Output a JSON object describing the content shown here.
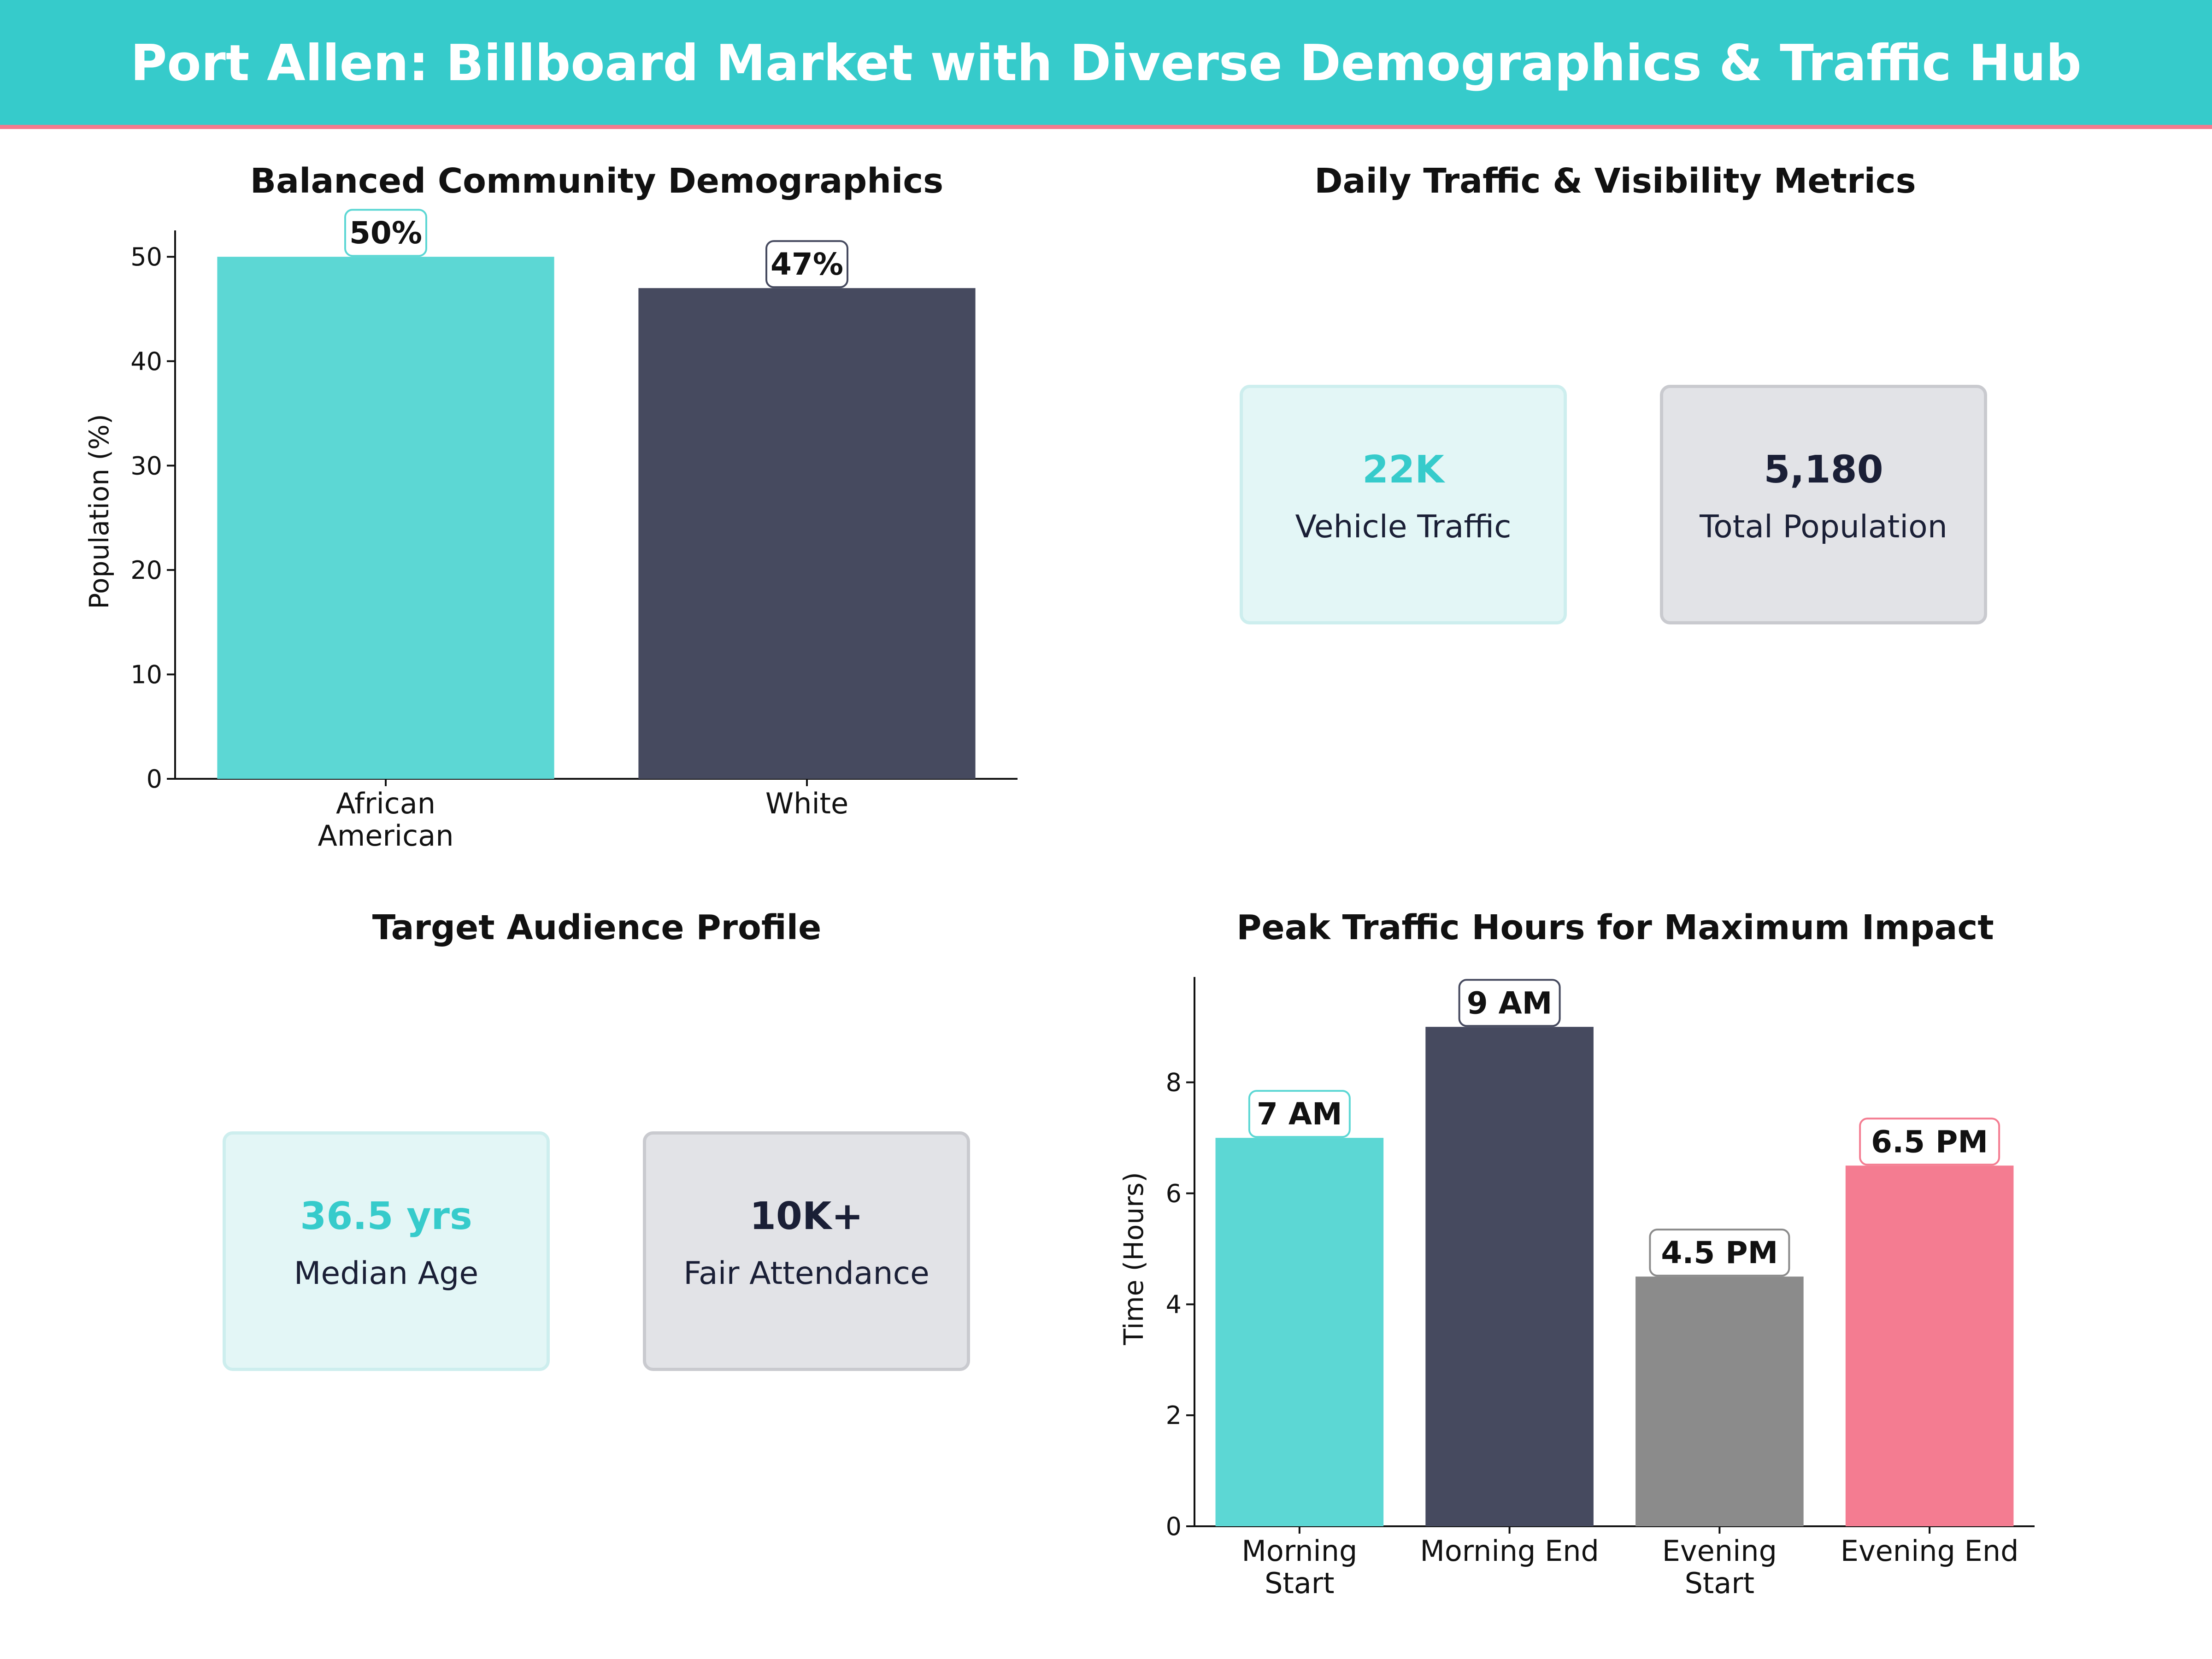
{
  "header": {
    "title": "Port Allen: Billboard Market with Diverse Demographics & Traffic Hub"
  },
  "colors": {
    "teal": "#5cd7d4",
    "navy": "#464a5f",
    "gray": "#8b8b8b",
    "pink": "#f47c91",
    "header_bg": "#36cbcb",
    "accent_line": "#f47a8e"
  },
  "panels": {
    "demographics": {
      "title": "Balanced Community Demographics"
    },
    "traffic_metrics": {
      "title": "Daily Traffic & Visibility Metrics",
      "cards": [
        {
          "value": "22K",
          "label": "Vehicle Traffic",
          "color": "#36cbcb"
        },
        {
          "value": "5,180",
          "label": "Total Population",
          "color": "#1a1f36"
        }
      ]
    },
    "audience": {
      "title": "Target Audience Profile",
      "cards": [
        {
          "value": "36.5 yrs",
          "label": "Median Age",
          "color": "#36cbcb"
        },
        {
          "value": "10K+",
          "label": "Fair Attendance",
          "color": "#1a1f36"
        }
      ]
    },
    "peak_hours": {
      "title": "Peak Traffic Hours for Maximum Impact"
    }
  },
  "chart_data": [
    {
      "type": "bar",
      "title": "Balanced Community Demographics",
      "categories": [
        [
          "African",
          "American"
        ],
        [
          "White"
        ]
      ],
      "values": [
        50,
        47
      ],
      "data_labels": [
        "50%",
        "47%"
      ],
      "colors": [
        "#5cd7d4",
        "#464a5f"
      ],
      "label_border_colors": [
        "#5cd7d4",
        "#464a5f"
      ],
      "ylabel": "Population (%)",
      "xlabel": "",
      "ylim": [
        0,
        51.2
      ],
      "yticks": [
        0,
        10,
        20,
        30,
        40,
        50
      ],
      "grid": false
    },
    {
      "type": "bar",
      "title": "Peak Traffic Hours for Maximum Impact",
      "categories": [
        [
          "Morning",
          "Start"
        ],
        [
          "Morning End"
        ],
        [
          "Evening",
          "Start"
        ],
        [
          "Evening End"
        ]
      ],
      "values": [
        7,
        9,
        4.5,
        6.5
      ],
      "data_labels": [
        "7 AM",
        "9 AM",
        "4.5 PM",
        "6.5 PM"
      ],
      "colors": [
        "#5cd7d4",
        "#464a5f",
        "#8b8b8b",
        "#f47c91"
      ],
      "label_border_colors": [
        "#5cd7d4",
        "#464a5f",
        "#8b8b8b",
        "#f47c91"
      ],
      "ylabel": "Time (Hours)",
      "xlabel": "",
      "ylim": [
        0,
        9.65
      ],
      "yticks": [
        0,
        2,
        4,
        6,
        8
      ],
      "grid": false
    }
  ]
}
